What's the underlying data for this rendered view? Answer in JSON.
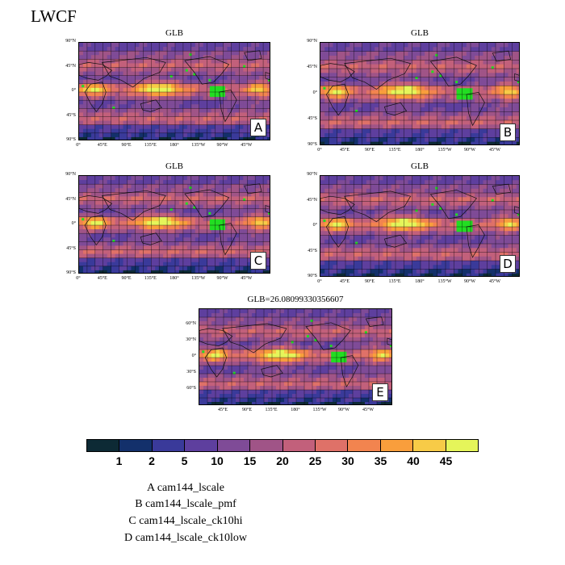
{
  "figure": {
    "title": "LWCF"
  },
  "panels": [
    {
      "id": "A",
      "title": "GLB",
      "tag": "A"
    },
    {
      "id": "B",
      "title": "GLB",
      "tag": "B"
    },
    {
      "id": "C",
      "title": "GLB",
      "tag": "C"
    },
    {
      "id": "D",
      "title": "GLB",
      "tag": "D"
    },
    {
      "id": "E",
      "title": "GLB=26.08099330356607",
      "tag": "E"
    }
  ],
  "axes": {
    "lat_labels_4": [
      "90°N",
      "45°N",
      "0°",
      "45°S",
      "90°S"
    ],
    "lon_labels_4": [
      "0°",
      "45°E",
      "90°E",
      "135°E",
      "180°",
      "135°W",
      "90°W",
      "45°W"
    ],
    "lat_labels_E": [
      "60°N",
      "30°N",
      "0°",
      "30°S",
      "60°S"
    ],
    "lon_labels_E": [
      "45°E",
      "90°E",
      "135°E",
      "180°",
      "135°W",
      "90°W",
      "45°W"
    ]
  },
  "chart_data": {
    "type": "heatmap",
    "variable": "LWCF",
    "colorbar": {
      "levels": [
        1,
        2,
        5,
        10,
        15,
        20,
        25,
        30,
        35,
        40,
        45
      ],
      "colors": [
        "#0d2a35",
        "#13306b",
        "#3a3a9a",
        "#5e3f9e",
        "#7f4b97",
        "#a05487",
        "#c2607b",
        "#df7168",
        "#f2844f",
        "#f99e3c",
        "#f7cb47",
        "#e5f55a"
      ]
    },
    "highlight_color": "#22dd22"
  },
  "legend": [
    "A  cam144_lscale",
    "B  cam144_lscale_pmf",
    "C  cam144_lscale_ck10hi",
    "D  cam144_lscale_ck10low"
  ]
}
